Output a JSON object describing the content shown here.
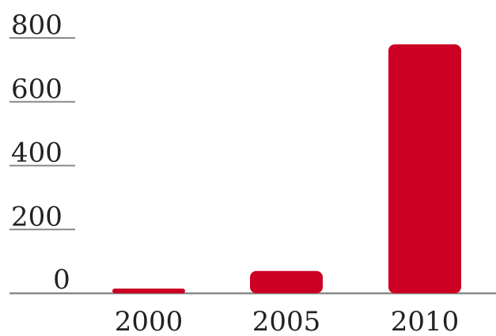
{
  "chart_data": {
    "type": "bar",
    "title": "",
    "xlabel": "",
    "ylabel": "",
    "categories": [
      "2000",
      "2005",
      "2010"
    ],
    "values": [
      15,
      70,
      780
    ],
    "ylim": [
      0,
      800
    ],
    "yticks": [
      0,
      200,
      400,
      600,
      800
    ],
    "ytick_labels": [
      "0",
      "200",
      "400",
      "600",
      "800"
    ],
    "grid": false,
    "legend": "none",
    "colors": {
      "bar": "#cc0022",
      "axis": "#888888",
      "text": "#222222"
    }
  }
}
